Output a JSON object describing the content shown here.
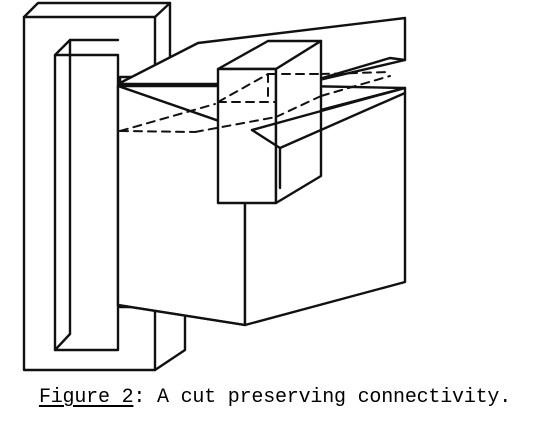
{
  "caption": {
    "label": "Figure 2",
    "text": ": A cut preserving connectivity."
  }
}
